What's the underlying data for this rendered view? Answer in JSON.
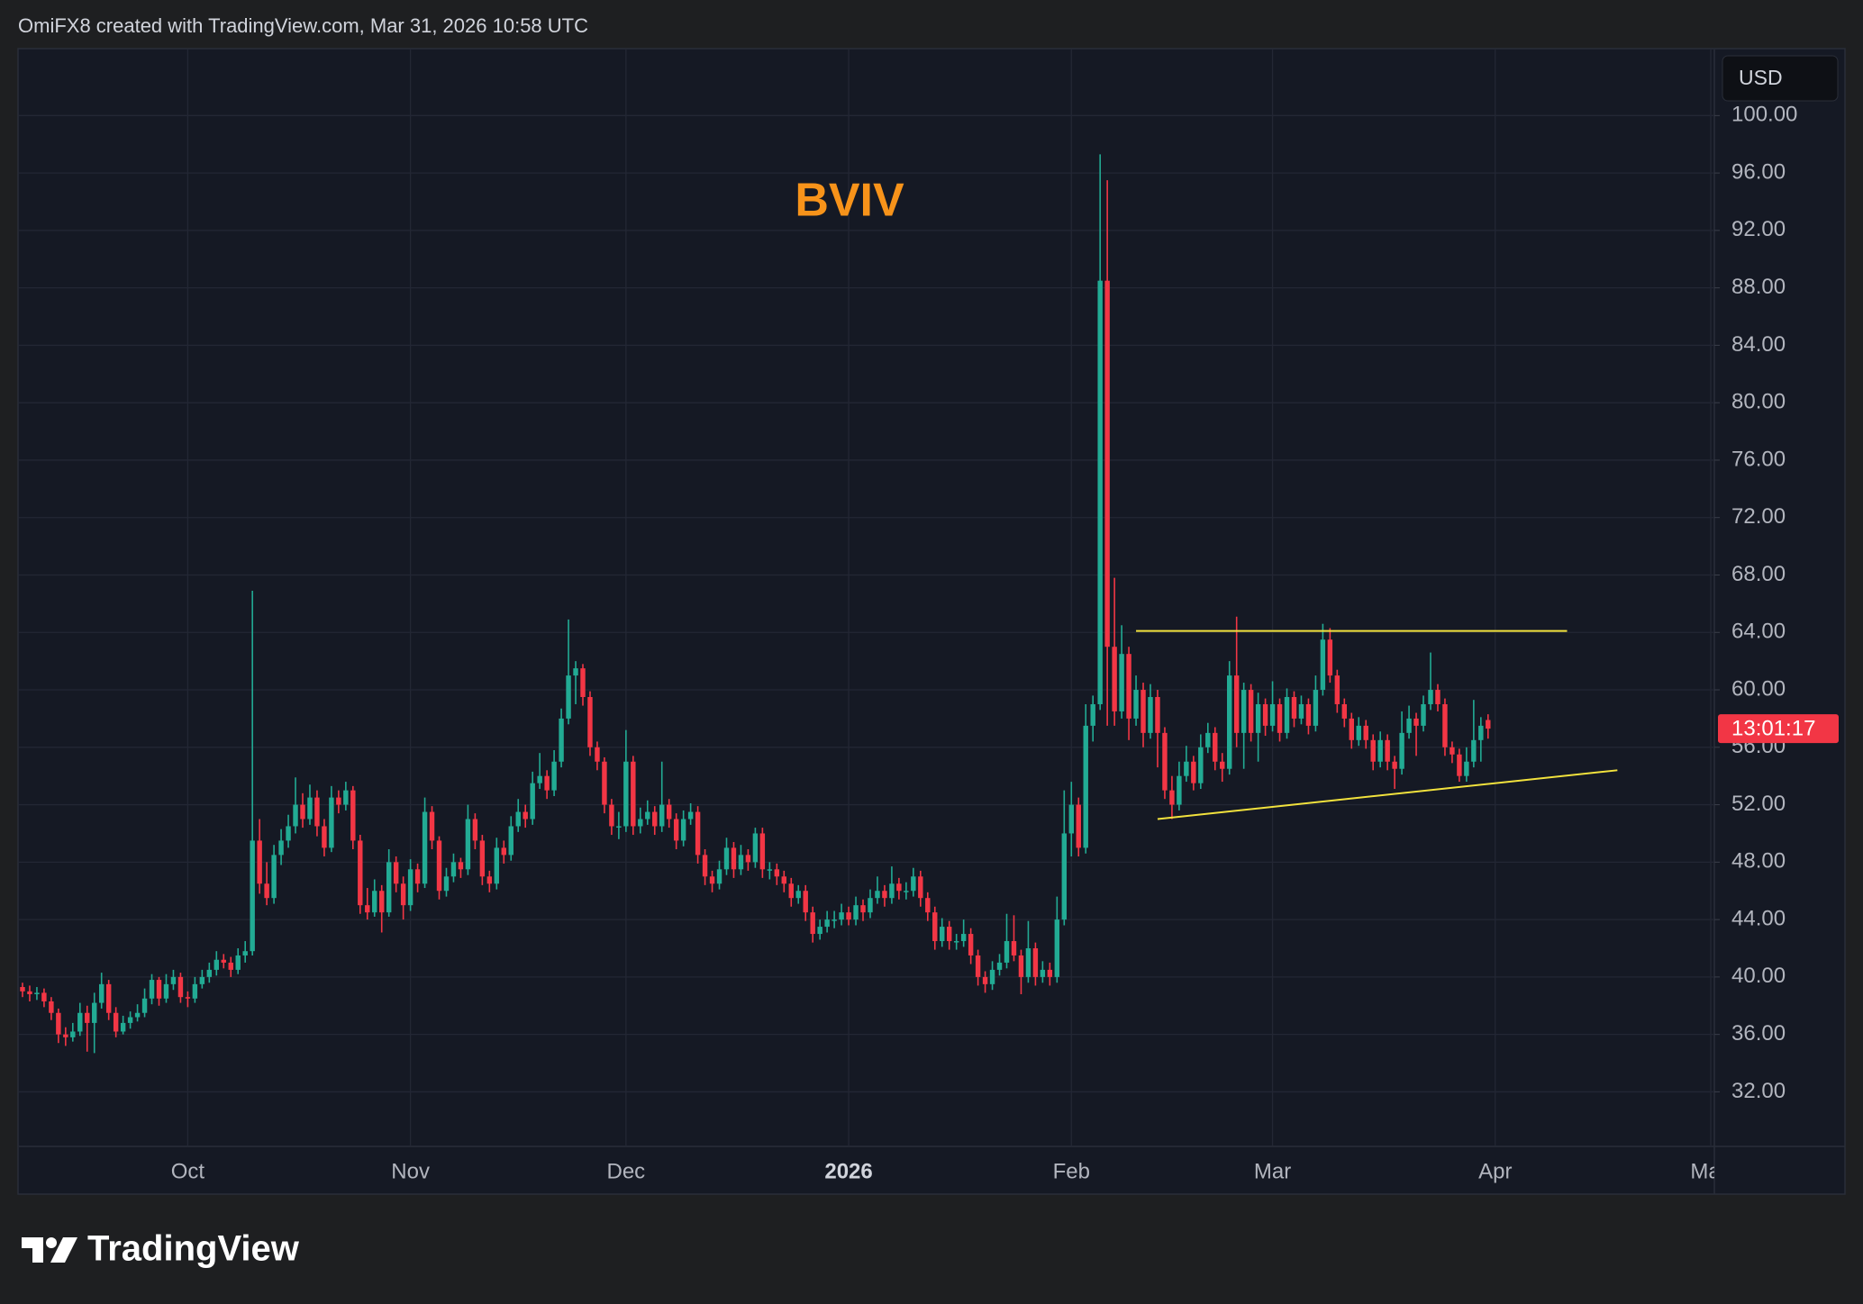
{
  "header": "OmiFX8 created with TradingView.com, Mar 31, 2026 10:58 UTC",
  "chart_data": {
    "type": "candlestick",
    "title": "BVIV",
    "currency": "USD",
    "countdown": "13:01:17",
    "up_color": "#22ab94",
    "down_color": "#f23645",
    "grid": true,
    "xlim": [
      -0.5,
      235.5
    ],
    "xticks": [
      {
        "value": 23,
        "label": "Oct"
      },
      {
        "value": 54,
        "label": "Nov"
      },
      {
        "value": 84,
        "label": "Dec"
      },
      {
        "value": 115,
        "label": "2026"
      },
      {
        "value": 146,
        "label": "Feb"
      },
      {
        "value": 174,
        "label": "Mar"
      },
      {
        "value": 205,
        "label": "Apr"
      },
      {
        "value": 235,
        "label": "May"
      }
    ],
    "ylim": [
      28.2,
      104.6
    ],
    "yticks": [
      {
        "value": 32,
        "label": "32.00"
      },
      {
        "value": 36,
        "label": "36.00"
      },
      {
        "value": 40,
        "label": "40.00"
      },
      {
        "value": 44,
        "label": "44.00"
      },
      {
        "value": 48,
        "label": "48.00"
      },
      {
        "value": 52,
        "label": "52.00"
      },
      {
        "value": 56,
        "label": "56.00"
      },
      {
        "value": 60,
        "label": "60.00"
      },
      {
        "value": 64,
        "label": "64.00"
      },
      {
        "value": 68,
        "label": "68.00"
      },
      {
        "value": 72,
        "label": "72.00"
      },
      {
        "value": 76,
        "label": "76.00"
      },
      {
        "value": 80,
        "label": "80.00"
      },
      {
        "value": 84,
        "label": "84.00"
      },
      {
        "value": 88,
        "label": "88.00"
      },
      {
        "value": 92,
        "label": "92.00"
      },
      {
        "value": 96,
        "label": "96.00"
      },
      {
        "value": 100,
        "label": "100.00"
      }
    ],
    "trendline_color": "#f2e23d",
    "trendlines": [
      {
        "x": [
          155,
          215
        ],
        "y": [
          64.1,
          64.1
        ]
      },
      {
        "x": [
          158,
          222
        ],
        "y": [
          51.0,
          54.4
        ]
      }
    ],
    "candles": [
      [
        39.3,
        39.6,
        38.6,
        39.0
      ],
      [
        39.0,
        39.4,
        38.3,
        38.8
      ],
      [
        38.8,
        39.3,
        38.4,
        38.9
      ],
      [
        38.9,
        39.2,
        37.9,
        38.3
      ],
      [
        38.3,
        38.6,
        37.0,
        37.5
      ],
      [
        37.5,
        37.8,
        35.4,
        36.0
      ],
      [
        36.0,
        36.5,
        35.2,
        35.8
      ],
      [
        35.8,
        36.8,
        35.5,
        36.2
      ],
      [
        36.2,
        38.2,
        35.9,
        37.5
      ],
      [
        37.5,
        38.0,
        34.8,
        36.8
      ],
      [
        36.8,
        38.9,
        34.7,
        38.2
      ],
      [
        38.2,
        40.3,
        37.8,
        39.5
      ],
      [
        39.5,
        39.8,
        37.0,
        37.5
      ],
      [
        37.5,
        37.9,
        35.8,
        36.2
      ],
      [
        36.2,
        37.3,
        36.0,
        36.8
      ],
      [
        36.8,
        37.6,
        36.4,
        37.2
      ],
      [
        37.2,
        38.1,
        36.9,
        37.5
      ],
      [
        37.5,
        39.2,
        37.2,
        38.5
      ],
      [
        38.5,
        40.2,
        38.1,
        39.8
      ],
      [
        39.8,
        40.0,
        38.0,
        38.5
      ],
      [
        38.5,
        40.2,
        38.2,
        39.5
      ],
      [
        39.5,
        40.5,
        39.1,
        40.0
      ],
      [
        40.0,
        40.3,
        38.2,
        38.6
      ],
      [
        38.6,
        39.0,
        37.9,
        38.5
      ],
      [
        38.5,
        40.0,
        38.2,
        39.5
      ],
      [
        39.5,
        40.5,
        39.2,
        40.0
      ],
      [
        40.0,
        41.0,
        39.6,
        40.5
      ],
      [
        40.5,
        41.8,
        40.1,
        41.2
      ],
      [
        41.2,
        41.6,
        40.6,
        41.0
      ],
      [
        41.0,
        41.4,
        40.0,
        40.5
      ],
      [
        40.5,
        42.0,
        40.2,
        41.5
      ],
      [
        41.5,
        42.5,
        41.0,
        41.8
      ],
      [
        41.8,
        66.9,
        41.5,
        49.5
      ],
      [
        49.5,
        51.0,
        45.8,
        46.5
      ],
      [
        46.5,
        48.0,
        45.0,
        45.5
      ],
      [
        45.5,
        49.2,
        45.1,
        48.5
      ],
      [
        48.5,
        50.3,
        47.8,
        49.5
      ],
      [
        49.5,
        51.3,
        49.0,
        50.5
      ],
      [
        50.5,
        53.9,
        50.0,
        52.0
      ],
      [
        52.0,
        52.8,
        50.4,
        51.0
      ],
      [
        51.0,
        53.4,
        50.6,
        52.5
      ],
      [
        52.5,
        53.0,
        49.8,
        50.5
      ],
      [
        50.5,
        51.0,
        48.4,
        49.0
      ],
      [
        49.0,
        53.3,
        48.7,
        52.5
      ],
      [
        52.5,
        53.0,
        51.4,
        52.0
      ],
      [
        52.0,
        53.6,
        51.6,
        53.0
      ],
      [
        53.0,
        53.3,
        48.9,
        49.5
      ],
      [
        49.5,
        49.9,
        44.4,
        45.0
      ],
      [
        45.0,
        46.2,
        44.0,
        44.5
      ],
      [
        44.5,
        46.8,
        44.2,
        46.0
      ],
      [
        46.0,
        46.4,
        43.1,
        44.5
      ],
      [
        44.5,
        48.9,
        44.2,
        48.0
      ],
      [
        48.0,
        48.4,
        45.9,
        46.5
      ],
      [
        46.5,
        47.0,
        44.0,
        45.0
      ],
      [
        45.0,
        48.2,
        44.6,
        47.5
      ],
      [
        47.5,
        47.9,
        45.9,
        46.5
      ],
      [
        46.5,
        52.5,
        46.2,
        51.5
      ],
      [
        51.5,
        51.9,
        48.9,
        49.5
      ],
      [
        49.5,
        49.8,
        45.4,
        46.0
      ],
      [
        46.0,
        47.6,
        45.6,
        47.0
      ],
      [
        47.0,
        48.6,
        46.6,
        48.0
      ],
      [
        48.0,
        48.3,
        46.9,
        47.5
      ],
      [
        47.5,
        52.0,
        47.1,
        51.0
      ],
      [
        51.0,
        51.4,
        48.9,
        49.5
      ],
      [
        49.5,
        49.9,
        46.4,
        47.0
      ],
      [
        47.0,
        47.4,
        45.9,
        46.5
      ],
      [
        46.5,
        49.7,
        46.1,
        49.0
      ],
      [
        49.0,
        49.5,
        47.9,
        48.5
      ],
      [
        48.5,
        51.2,
        48.1,
        50.5
      ],
      [
        50.5,
        52.4,
        50.1,
        51.5
      ],
      [
        51.5,
        52.0,
        50.4,
        51.0
      ],
      [
        51.0,
        54.3,
        50.6,
        53.5
      ],
      [
        53.5,
        55.6,
        53.1,
        54.0
      ],
      [
        54.0,
        54.4,
        52.4,
        53.0
      ],
      [
        53.0,
        55.8,
        52.6,
        55.0
      ],
      [
        55.0,
        58.7,
        54.6,
        58.0
      ],
      [
        58.0,
        64.9,
        57.6,
        61.0
      ],
      [
        61.0,
        62.0,
        59.0,
        61.5
      ],
      [
        61.5,
        61.8,
        58.9,
        59.5
      ],
      [
        59.5,
        59.9,
        55.4,
        56.0
      ],
      [
        56.0,
        56.4,
        54.4,
        55.0
      ],
      [
        55.0,
        55.3,
        51.4,
        52.0
      ],
      [
        52.0,
        52.4,
        49.9,
        50.5
      ],
      [
        50.5,
        51.5,
        49.6,
        50.5
      ],
      [
        50.5,
        57.2,
        50.1,
        55.0
      ],
      [
        55.0,
        55.4,
        49.9,
        50.5
      ],
      [
        50.5,
        51.8,
        50.0,
        51.0
      ],
      [
        51.0,
        52.3,
        50.6,
        51.5
      ],
      [
        51.5,
        51.9,
        49.9,
        50.5
      ],
      [
        50.5,
        55.0,
        50.1,
        52.0
      ],
      [
        52.0,
        52.4,
        50.4,
        51.0
      ],
      [
        51.0,
        51.4,
        48.9,
        49.5
      ],
      [
        49.5,
        51.6,
        49.1,
        51.0
      ],
      [
        51.0,
        52.1,
        50.6,
        51.5
      ],
      [
        51.5,
        51.9,
        47.9,
        48.5
      ],
      [
        48.5,
        48.9,
        46.4,
        47.0
      ],
      [
        47.0,
        47.4,
        45.9,
        46.5
      ],
      [
        46.5,
        48.1,
        46.1,
        47.5
      ],
      [
        47.5,
        49.7,
        47.1,
        49.0
      ],
      [
        49.0,
        49.4,
        46.9,
        47.5
      ],
      [
        47.5,
        49.2,
        47.1,
        48.5
      ],
      [
        48.5,
        48.9,
        47.4,
        48.0
      ],
      [
        48.0,
        50.4,
        47.6,
        50.0
      ],
      [
        50.0,
        50.4,
        46.9,
        47.5
      ],
      [
        47.5,
        48.0,
        46.8,
        47.5
      ],
      [
        47.5,
        47.9,
        46.4,
        47.0
      ],
      [
        47.0,
        47.4,
        45.9,
        46.5
      ],
      [
        46.5,
        46.9,
        44.9,
        45.5
      ],
      [
        45.5,
        46.4,
        45.1,
        46.0
      ],
      [
        46.0,
        46.4,
        43.9,
        44.5
      ],
      [
        44.5,
        44.9,
        42.4,
        43.0
      ],
      [
        43.0,
        44.0,
        42.6,
        43.5
      ],
      [
        43.5,
        44.6,
        43.1,
        44.0
      ],
      [
        44.0,
        44.6,
        43.4,
        44.0
      ],
      [
        44.0,
        45.1,
        43.6,
        44.5
      ],
      [
        44.5,
        44.9,
        43.6,
        44.0
      ],
      [
        44.0,
        45.6,
        43.6,
        45.0
      ],
      [
        45.0,
        45.4,
        43.9,
        44.5
      ],
      [
        44.5,
        46.1,
        44.1,
        45.5
      ],
      [
        45.5,
        47.0,
        45.1,
        46.0
      ],
      [
        46.0,
        46.4,
        44.9,
        45.5
      ],
      [
        45.5,
        47.7,
        45.1,
        46.5
      ],
      [
        46.5,
        46.9,
        45.4,
        46.0
      ],
      [
        46.0,
        46.6,
        45.4,
        46.0
      ],
      [
        46.0,
        47.6,
        45.6,
        47.0
      ],
      [
        47.0,
        47.4,
        44.9,
        45.5
      ],
      [
        45.5,
        45.9,
        43.9,
        44.5
      ],
      [
        44.5,
        44.9,
        41.9,
        42.5
      ],
      [
        42.5,
        44.1,
        42.1,
        43.5
      ],
      [
        43.5,
        43.9,
        41.9,
        42.5
      ],
      [
        42.5,
        43.0,
        41.9,
        42.5
      ],
      [
        42.5,
        44.0,
        42.1,
        43.0
      ],
      [
        43.0,
        43.4,
        40.9,
        41.5
      ],
      [
        41.5,
        41.9,
        39.4,
        40.0
      ],
      [
        40.0,
        40.4,
        38.9,
        39.5
      ],
      [
        39.5,
        41.1,
        39.1,
        40.5
      ],
      [
        40.5,
        41.6,
        40.1,
        41.0
      ],
      [
        41.0,
        44.4,
        40.6,
        42.5
      ],
      [
        42.5,
        44.3,
        41.1,
        41.5
      ],
      [
        41.5,
        41.9,
        38.8,
        40.0
      ],
      [
        40.0,
        43.9,
        39.6,
        42.0
      ],
      [
        42.0,
        42.4,
        39.4,
        40.0
      ],
      [
        40.0,
        41.1,
        39.6,
        40.5
      ],
      [
        40.5,
        41.0,
        39.4,
        40.0
      ],
      [
        40.0,
        45.6,
        39.6,
        44.0
      ],
      [
        44.0,
        53.0,
        43.6,
        50.0
      ],
      [
        50.0,
        53.6,
        48.4,
        52.0
      ],
      [
        52.0,
        52.5,
        48.4,
        49.0
      ],
      [
        49.0,
        59.0,
        48.6,
        57.5
      ],
      [
        57.5,
        59.6,
        56.4,
        59.0
      ],
      [
        59.0,
        97.3,
        58.6,
        88.5
      ],
      [
        88.5,
        95.5,
        57.5,
        63.0
      ],
      [
        63.0,
        67.8,
        57.5,
        58.5
      ],
      [
        58.5,
        64.5,
        58.0,
        62.5
      ],
      [
        62.5,
        63.0,
        56.5,
        58.0
      ],
      [
        58.0,
        61.0,
        57.5,
        60.0
      ],
      [
        60.0,
        60.5,
        56.0,
        57.0
      ],
      [
        57.0,
        60.4,
        56.6,
        59.5
      ],
      [
        59.5,
        60.0,
        54.6,
        57.0
      ],
      [
        57.0,
        57.4,
        52.4,
        53.0
      ],
      [
        53.0,
        54.0,
        51.0,
        52.0
      ],
      [
        52.0,
        55.0,
        51.6,
        54.0
      ],
      [
        54.0,
        56.1,
        53.6,
        55.0
      ],
      [
        55.0,
        55.4,
        53.0,
        53.5
      ],
      [
        53.5,
        56.9,
        53.1,
        56.0
      ],
      [
        56.0,
        57.7,
        55.6,
        57.0
      ],
      [
        57.0,
        57.4,
        54.4,
        55.0
      ],
      [
        55.0,
        55.6,
        53.6,
        54.5
      ],
      [
        54.5,
        62.0,
        54.1,
        61.0
      ],
      [
        61.0,
        65.1,
        56.0,
        57.0
      ],
      [
        57.0,
        60.5,
        54.5,
        60.0
      ],
      [
        60.0,
        60.4,
        56.4,
        57.0
      ],
      [
        57.0,
        59.8,
        55.0,
        59.0
      ],
      [
        59.0,
        59.4,
        56.8,
        57.5
      ],
      [
        57.5,
        60.6,
        57.1,
        59.0
      ],
      [
        59.0,
        59.4,
        56.4,
        57.0
      ],
      [
        57.0,
        60.1,
        56.6,
        59.5
      ],
      [
        59.5,
        59.9,
        57.4,
        58.0
      ],
      [
        58.0,
        59.6,
        57.6,
        59.0
      ],
      [
        59.0,
        59.4,
        56.9,
        57.5
      ],
      [
        57.5,
        61.0,
        57.1,
        60.0
      ],
      [
        60.0,
        64.6,
        59.6,
        63.5
      ],
      [
        63.5,
        64.3,
        60.5,
        61.0
      ],
      [
        61.0,
        61.4,
        58.4,
        59.0
      ],
      [
        59.0,
        59.4,
        57.4,
        58.0
      ],
      [
        58.0,
        58.4,
        55.9,
        56.5
      ],
      [
        56.5,
        58.1,
        56.1,
        57.5
      ],
      [
        57.5,
        57.9,
        55.9,
        56.5
      ],
      [
        56.5,
        56.9,
        54.4,
        55.0
      ],
      [
        55.0,
        57.1,
        54.6,
        56.5
      ],
      [
        56.5,
        56.9,
        54.4,
        55.0
      ],
      [
        55.0,
        55.4,
        53.1,
        54.5
      ],
      [
        54.5,
        58.5,
        54.1,
        57.0
      ],
      [
        57.0,
        58.9,
        56.6,
        58.0
      ],
      [
        58.0,
        58.4,
        55.4,
        57.5
      ],
      [
        57.5,
        59.6,
        57.1,
        59.0
      ],
      [
        59.0,
        62.6,
        58.6,
        60.0
      ],
      [
        60.0,
        60.4,
        58.5,
        59.0
      ],
      [
        59.0,
        59.4,
        55.4,
        56.0
      ],
      [
        56.0,
        56.4,
        54.9,
        55.5
      ],
      [
        55.5,
        55.9,
        53.6,
        54.0
      ],
      [
        54.0,
        56.0,
        53.6,
        55.0
      ],
      [
        55.0,
        59.3,
        54.6,
        56.5
      ],
      [
        56.5,
        58.1,
        55.0,
        57.5
      ],
      [
        57.9,
        58.3,
        56.6,
        57.3
      ]
    ]
  },
  "footer": {
    "brand": "TradingView"
  }
}
